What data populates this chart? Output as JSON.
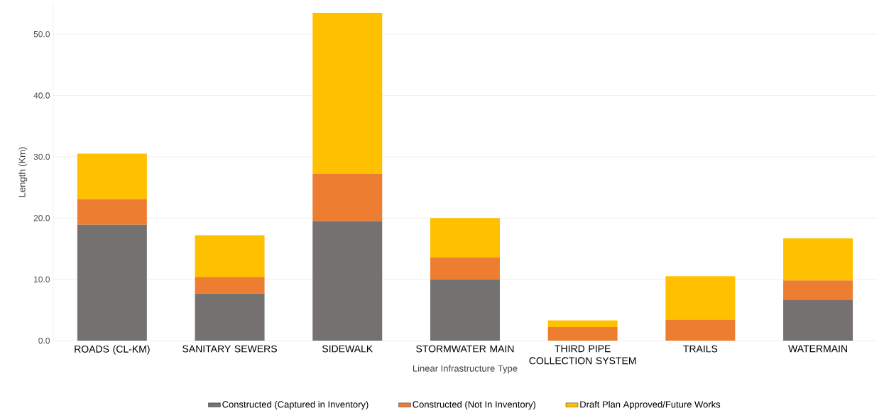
{
  "chart_data": {
    "type": "bar",
    "stacked": true,
    "xlabel": "Linear Infrastructure Type",
    "ylabel": "Length (Km)",
    "categories": [
      "ROADS (CL-KM)",
      "SANITARY SEWERS",
      "SIDEWALK",
      "STORMWATER MAIN",
      "THIRD PIPE COLLECTION SYSTEM",
      "TRAILS",
      "WATERMAIN"
    ],
    "series": [
      {
        "name": "Constructed (Captured in Inventory)",
        "color": "#767171",
        "values": [
          18.9,
          7.7,
          19.5,
          10.0,
          0,
          0,
          6.6
        ]
      },
      {
        "name": "Constructed (Not In Inventory)",
        "color": "#ed7d31",
        "values": [
          4.2,
          2.7,
          7.7,
          3.6,
          2.2,
          3.4,
          3.2
        ]
      },
      {
        "name": "Draft Plan Approved/Future Works",
        "color": "#ffc000",
        "values": [
          7.4,
          6.8,
          26.3,
          6.4,
          1.1,
          7.1,
          6.9
        ]
      }
    ],
    "ylim": [
      0,
      55
    ],
    "yticks": [
      {
        "value": 0,
        "label": "0.0"
      },
      {
        "value": 10,
        "label": "10.0"
      },
      {
        "value": 20,
        "label": "20.0"
      },
      {
        "value": 30,
        "label": "30.0"
      },
      {
        "value": 40,
        "label": "40.0"
      },
      {
        "value": 50,
        "label": "50.0"
      }
    ],
    "grid": "y",
    "legend": "bottom"
  }
}
